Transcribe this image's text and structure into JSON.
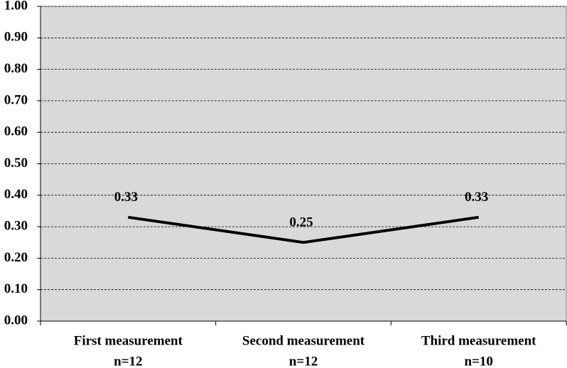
{
  "chart_data": {
    "type": "line",
    "categories": [
      [
        "First measurement",
        "n=12"
      ],
      [
        "Second measurement",
        "n=12"
      ],
      [
        "Third measurement",
        "n=10"
      ]
    ],
    "series": [
      {
        "color": "#000000",
        "values": [
          0.33,
          0.25,
          0.33
        ]
      }
    ],
    "ylim": [
      0,
      1
    ],
    "yticks": [
      {
        "value": 0,
        "label": "0.00"
      },
      {
        "value": 0.1,
        "label": "0.10"
      },
      {
        "value": 0.2,
        "label": "0.20"
      },
      {
        "value": 0.3,
        "label": "0.30"
      },
      {
        "value": 0.4,
        "label": "0.40"
      },
      {
        "value": 0.5,
        "label": "0.50"
      },
      {
        "value": 0.6,
        "label": "0.60"
      },
      {
        "value": 0.7,
        "label": "0.70"
      },
      {
        "value": 0.8,
        "label": "0.80"
      },
      {
        "value": 0.9,
        "label": "0.90"
      },
      {
        "value": 1,
        "label": "1.00"
      }
    ],
    "grid": true,
    "plot_background": "#d9d9d9"
  }
}
